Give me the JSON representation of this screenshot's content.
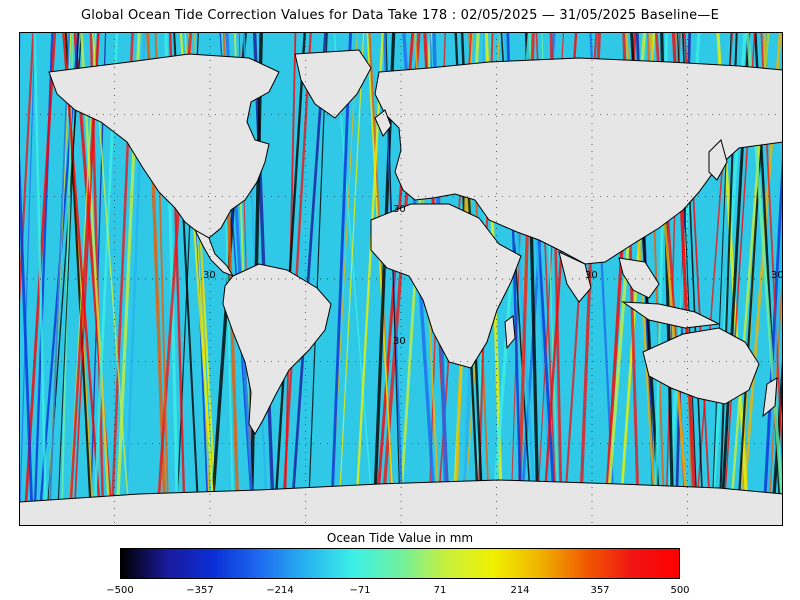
{
  "title": "Global Ocean Tide Correction Values for Data Take 178 : 02/05/2025 — 31/05/2025 Baseline—E",
  "map": {
    "grid_labels": [
      "30",
      "30",
      "30",
      "30",
      "30"
    ]
  },
  "colorbar": {
    "title": "Ocean Tide Value in mm",
    "unit": "mm",
    "min": -500,
    "max": 500,
    "tick_labels": [
      "−500",
      "−357",
      "−214",
      "−71",
      "71",
      "214",
      "357",
      "500"
    ],
    "colors": [
      "#000000",
      "#1a1a9c",
      "#0a2fd8",
      "#1e6cf0",
      "#28b4f0",
      "#3cf0e6",
      "#6ef0a0",
      "#c8f03c",
      "#f0f000",
      "#f0b400",
      "#f05a00",
      "#f01414",
      "#ff0000"
    ]
  }
}
